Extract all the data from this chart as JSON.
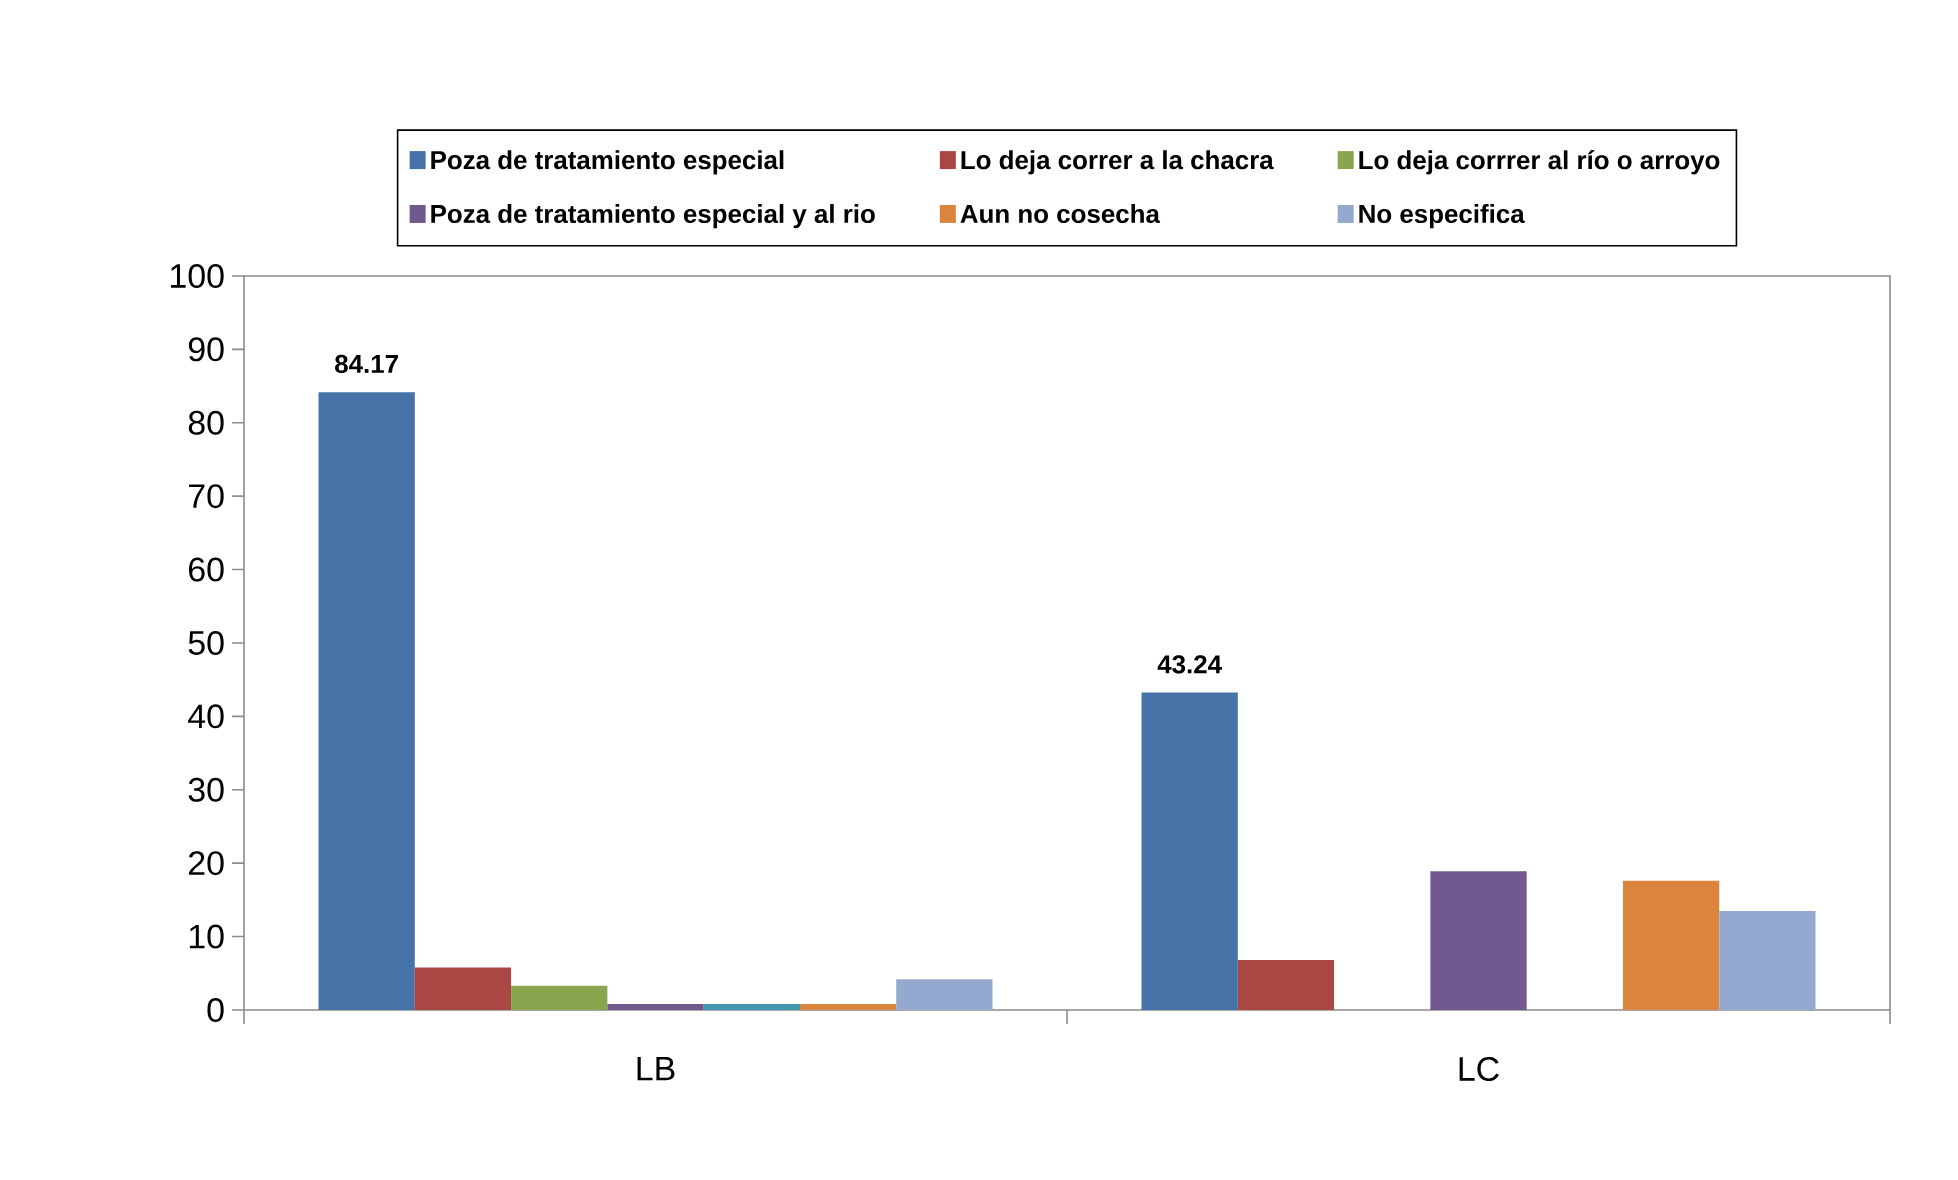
{
  "chart_data": {
    "type": "bar",
    "categories": [
      "LB",
      "LC"
    ],
    "series": [
      {
        "name": "Poza de tratamiento especial",
        "color": "#4572a7",
        "values": [
          84.17,
          43.24
        ],
        "value_labels": [
          "84.17",
          "43.24"
        ]
      },
      {
        "name": "Lo deja correr a la chacra",
        "color": "#aa4643",
        "values": [
          5.8,
          6.8
        ]
      },
      {
        "name": "Lo deja corrrer al río  o arroyo",
        "color": "#89a54e",
        "values": [
          3.3,
          0
        ]
      },
      {
        "name": "Poza de tratamiento especial y al rio",
        "color": "#71588f",
        "values": [
          0.8,
          18.9
        ]
      },
      {
        "color": "#4198af",
        "values": [
          0.8,
          0
        ]
      },
      {
        "name": "Aun no cosecha",
        "color": "#db843d",
        "values": [
          0.8,
          17.6
        ]
      },
      {
        "name": "No especifica",
        "color": "#93a9cf",
        "values": [
          4.2,
          13.5
        ]
      }
    ],
    "ylim": [
      0,
      100
    ],
    "yticks": [
      0,
      10,
      20,
      30,
      40,
      50,
      60,
      70,
      80,
      90,
      100
    ],
    "legend": "top",
    "grid": false
  }
}
